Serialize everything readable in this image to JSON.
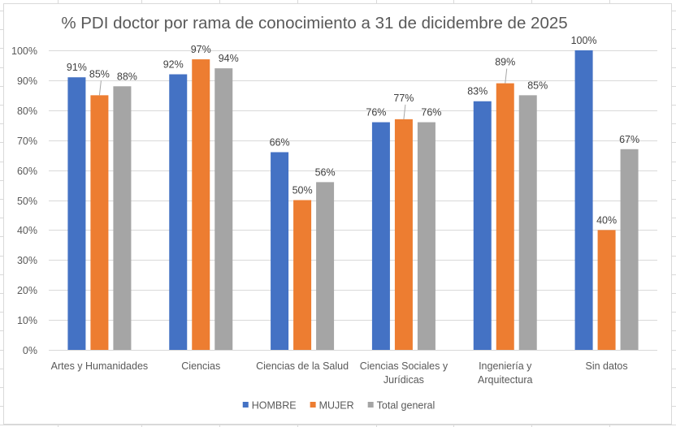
{
  "chart_data": {
    "type": "bar",
    "title": "% PDI doctor por rama de conocimiento a 31 de dicidembre de 2025",
    "xlabel": "",
    "ylabel": "",
    "ylim": [
      0,
      1
    ],
    "grid": true,
    "legend_position": "bottom",
    "y_ticks": [
      "0%",
      "10%",
      "20%",
      "30%",
      "40%",
      "50%",
      "60%",
      "70%",
      "80%",
      "90%",
      "100%"
    ],
    "categories": [
      [
        "Artes y Humanidades"
      ],
      [
        "Ciencias"
      ],
      [
        "Ciencias de la Salud"
      ],
      [
        "Ciencias Sociales y",
        "Jurídicas"
      ],
      [
        "Ingeniería y",
        "Arquitectura"
      ],
      [
        "Sin datos"
      ]
    ],
    "series": [
      {
        "name": "HOMBRE",
        "color": "#4472c4",
        "values": [
          0.91,
          0.92,
          0.66,
          0.76,
          0.83,
          1.0
        ],
        "labels": [
          "91%",
          "92%",
          "66%",
          "76%",
          "83%",
          "100%"
        ]
      },
      {
        "name": "MUJER",
        "color": "#ed7d31",
        "values": [
          0.85,
          0.97,
          0.5,
          0.77,
          0.89,
          0.4
        ],
        "labels": [
          "85%",
          "97%",
          "50%",
          "77%",
          "89%",
          "40%"
        ]
      },
      {
        "name": "Total general",
        "color": "#a5a5a5",
        "values": [
          0.88,
          0.94,
          0.56,
          0.76,
          0.85,
          0.67
        ],
        "labels": [
          "88%",
          "94%",
          "56%",
          "76%",
          "85%",
          "67%"
        ]
      }
    ]
  }
}
